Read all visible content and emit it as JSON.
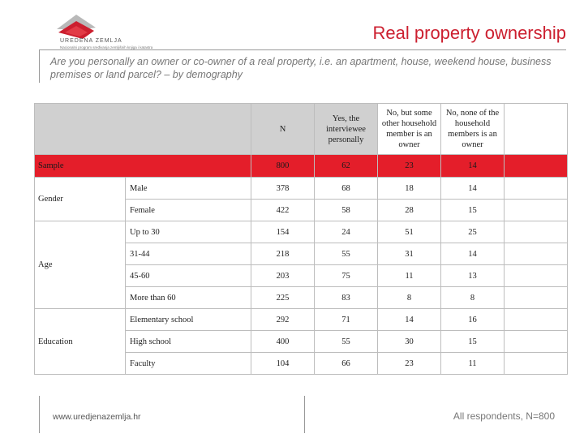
{
  "logo": {
    "name": "UREDENA ZEMLJA",
    "tagline": "Nacionalni program sređivanja zemljišnih knjiga i katastra",
    "brand_color": "#cc1f2f"
  },
  "header": {
    "title": "Real property ownership",
    "subtitle": "Are you personally an owner or co-owner of a real property, i.e. an apartment, house, weekend house, business premises or land parcel? – by demography"
  },
  "table": {
    "columns": [
      "N",
      "Yes, the interviewee personally",
      "No, but some other household member is an owner",
      "No, none of the household members is an owner"
    ],
    "sample": {
      "label": "Sample",
      "values": [
        "800",
        "62",
        "23",
        "14"
      ],
      "highlight_color": "#e41e2a"
    },
    "groups": [
      {
        "label": "Gender",
        "rows": [
          {
            "label": "Male",
            "values": [
              "378",
              "68",
              "18",
              "14"
            ]
          },
          {
            "label": "Female",
            "values": [
              "422",
              "58",
              "28",
              "15"
            ]
          }
        ]
      },
      {
        "label": "Age",
        "rows": [
          {
            "label": "Up to 30",
            "values": [
              "154",
              "24",
              "51",
              "25"
            ]
          },
          {
            "label": "31-44",
            "values": [
              "218",
              "55",
              "31",
              "14"
            ]
          },
          {
            "label": "45-60",
            "values": [
              "203",
              "75",
              "11",
              "13"
            ]
          },
          {
            "label": "More than 60",
            "values": [
              "225",
              "83",
              "8",
              "8"
            ]
          }
        ]
      },
      {
        "label": "Education",
        "rows": [
          {
            "label": "Elementary school",
            "values": [
              "292",
              "71",
              "14",
              "16"
            ]
          },
          {
            "label": "High school",
            "values": [
              "400",
              "55",
              "30",
              "15"
            ]
          },
          {
            "label": "Faculty",
            "values": [
              "104",
              "66",
              "23",
              "11"
            ]
          }
        ]
      }
    ]
  },
  "footer": {
    "website": "www.uredjenazemlja.hr",
    "note": "All respondents, N=800"
  }
}
